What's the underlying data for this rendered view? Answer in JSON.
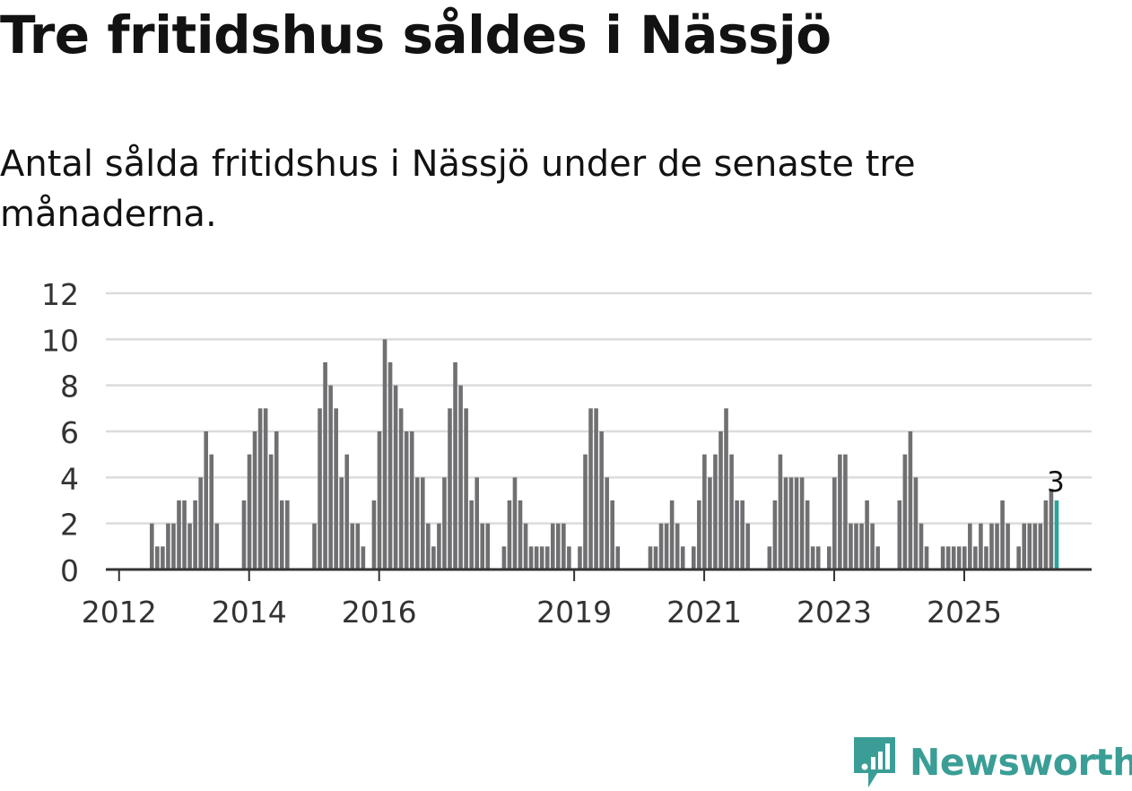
{
  "title": "Tre fritidshus såldes i Nässjö",
  "subtitle": "Antal sålda fritidshus i Nässjö under de senaste tre månaderna.",
  "brand": {
    "name": "Newsworthy",
    "color": "#3a9e96",
    "icon": "newsworthy-logo-icon"
  },
  "colors": {
    "bar": "#707073",
    "highlight": "#2aa39b",
    "grid": "#dcdcdc",
    "axis": "#333333"
  },
  "chart_data": {
    "type": "bar",
    "title": "Antal sålda fritidshus i Nässjö under de senaste tre månaderna.",
    "xlabel": "",
    "ylabel": "",
    "ylim": [
      0,
      12
    ],
    "yticks": [
      0,
      2,
      4,
      6,
      8,
      10,
      12
    ],
    "xtick_labels": [
      {
        "label": "2012",
        "year": 2012
      },
      {
        "label": "2014",
        "year": 2014
      },
      {
        "label": "2016",
        "year": 2016
      },
      {
        "label": "2019",
        "year": 2019
      },
      {
        "label": "2021",
        "year": 2021
      },
      {
        "label": "2023",
        "year": 2023
      },
      {
        "label": "2025",
        "year": 2025
      }
    ],
    "start": {
      "year": 2011,
      "month": 5
    },
    "series": [
      {
        "name": "Antal sålda fritidshus",
        "values": [
          0,
          0,
          0,
          0,
          0,
          0,
          0,
          0,
          0,
          0,
          0,
          0,
          0,
          0,
          0,
          0,
          0,
          0,
          0,
          0,
          2,
          1,
          1,
          2,
          2,
          3,
          3,
          2,
          3,
          4,
          6,
          5,
          2,
          0,
          0,
          0,
          0,
          3,
          5,
          6,
          7,
          7,
          5,
          6,
          3,
          3,
          0,
          0,
          0,
          0,
          2,
          7,
          9,
          8,
          7,
          4,
          5,
          2,
          2,
          1,
          0,
          3,
          6,
          10,
          9,
          8,
          7,
          6,
          6,
          4,
          4,
          2,
          1,
          2,
          4,
          7,
          9,
          8,
          7,
          3,
          4,
          2,
          2,
          0,
          0,
          1,
          3,
          4,
          3,
          2,
          1,
          1,
          1,
          1,
          2,
          2,
          2,
          1,
          0,
          1,
          5,
          7,
          7,
          6,
          4,
          3,
          1,
          0,
          0,
          0,
          0,
          0,
          1,
          1,
          2,
          2,
          3,
          2,
          1,
          0,
          1,
          3,
          5,
          4,
          5,
          6,
          7,
          5,
          3,
          3,
          2,
          0,
          0,
          0,
          1,
          3,
          5,
          4,
          4,
          4,
          4,
          3,
          1,
          1,
          0,
          1,
          4,
          5,
          5,
          2,
          2,
          2,
          3,
          2,
          1,
          0,
          0,
          0,
          3,
          5,
          6,
          4,
          2,
          1,
          0,
          0,
          1,
          1,
          1,
          1,
          1,
          2,
          1,
          2,
          1,
          2,
          2,
          3,
          2,
          0,
          1,
          2,
          2,
          2,
          2,
          3,
          3.5,
          3
        ]
      }
    ],
    "highlight": {
      "index": 187,
      "value": 3,
      "label": "3"
    }
  }
}
